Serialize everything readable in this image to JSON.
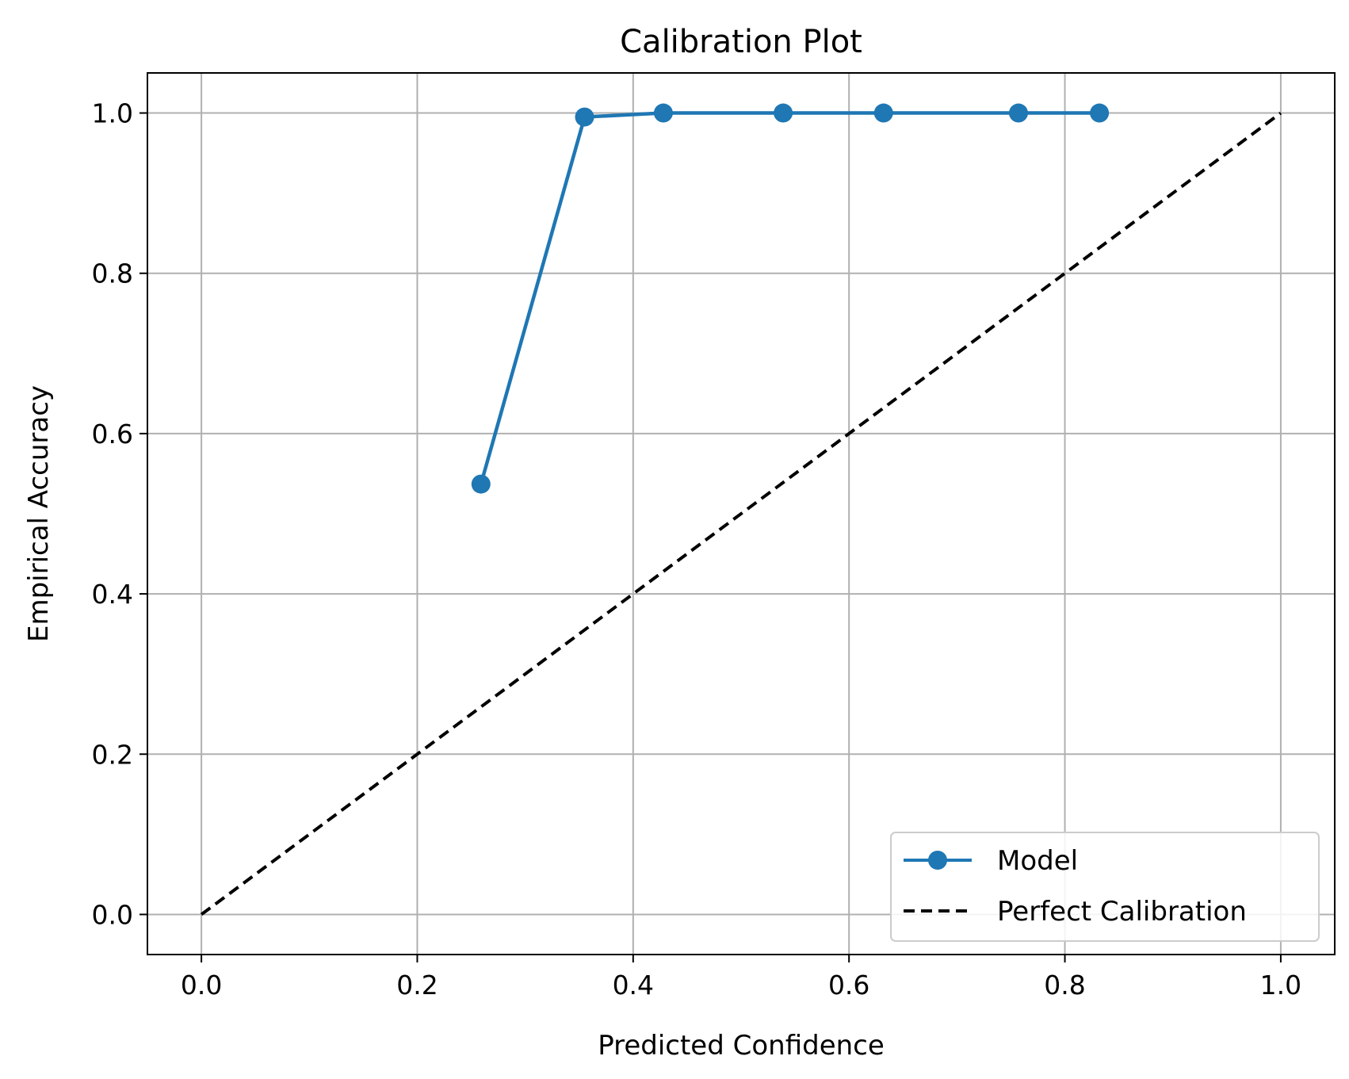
{
  "chart_data": {
    "type": "line",
    "title": "Calibration Plot",
    "xlabel": "Predicted Confidence",
    "ylabel": "Empirical Accuracy",
    "xlim": [
      -0.05,
      1.05
    ],
    "ylim": [
      -0.05,
      1.05
    ],
    "xticks": [
      "0.0",
      "0.2",
      "0.4",
      "0.6",
      "0.8",
      "1.0"
    ],
    "yticks": [
      "0.0",
      "0.2",
      "0.4",
      "0.6",
      "0.8",
      "1.0"
    ],
    "grid": true,
    "legend_position": "lower-right",
    "series": [
      {
        "name": "Model",
        "style": "solid-with-markers",
        "color": "#1f77b4",
        "x": [
          0.259,
          0.355,
          0.428,
          0.539,
          0.632,
          0.757,
          0.832
        ],
        "y": [
          0.537,
          0.995,
          1.0,
          1.0,
          1.0,
          1.0,
          1.0
        ]
      },
      {
        "name": "Perfect Calibration",
        "style": "dashed",
        "color": "#000000",
        "x": [
          0.0,
          1.0
        ],
        "y": [
          0.0,
          1.0
        ]
      }
    ]
  }
}
